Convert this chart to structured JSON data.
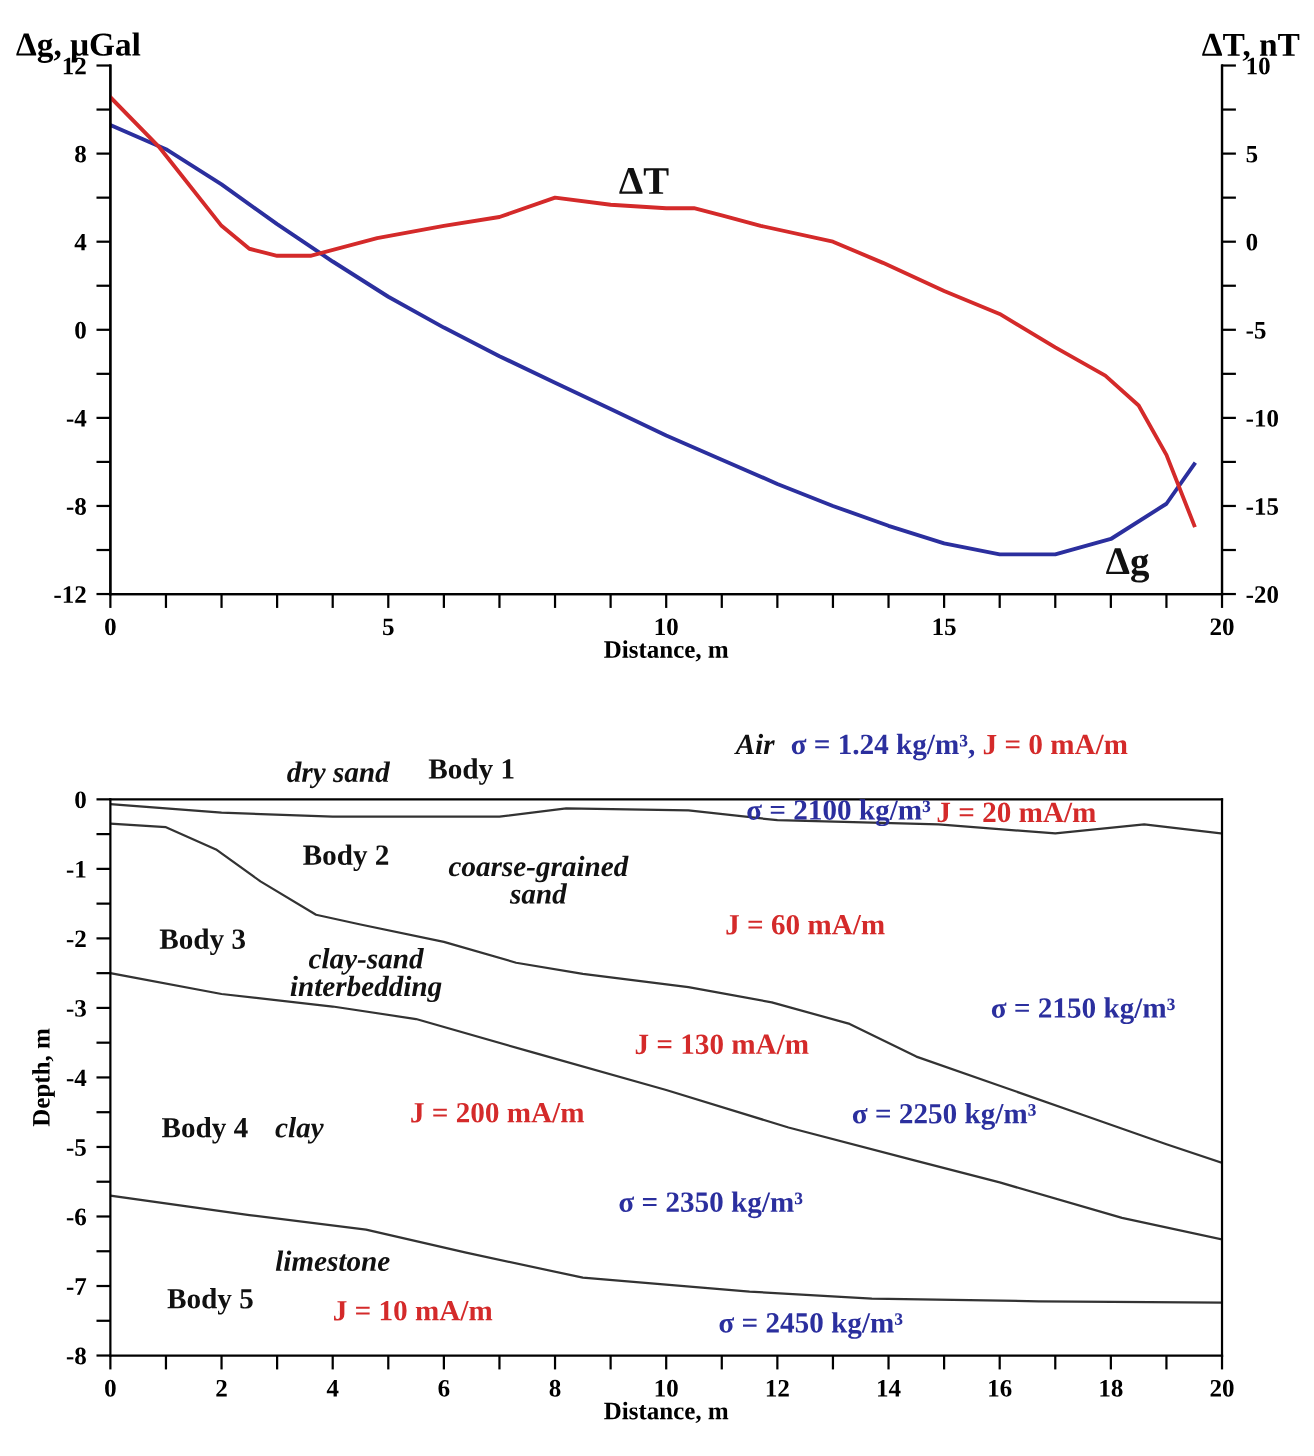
{
  "chart_data": [
    {
      "type": "line",
      "xlabel": "Distance, m",
      "ylabel": "Δg, μGal",
      "y2label": "ΔT, nT",
      "xlim": [
        0,
        20
      ],
      "xticks": [
        0,
        5,
        10,
        15,
        20,
        {
          "value": 1,
          "label": null
        },
        {
          "value": 2,
          "label": null
        },
        {
          "value": 3,
          "label": null
        },
        {
          "value": 4,
          "label": null
        },
        {
          "value": 6,
          "label": null
        },
        {
          "value": 7,
          "label": null
        },
        {
          "value": 8,
          "label": null
        },
        {
          "value": 9,
          "label": null
        },
        {
          "value": 11,
          "label": null
        },
        {
          "value": 12,
          "label": null
        },
        {
          "value": 13,
          "label": null
        },
        {
          "value": 14,
          "label": null
        },
        {
          "value": 16,
          "label": null
        },
        {
          "value": 17,
          "label": null
        },
        {
          "value": 18,
          "label": null
        },
        {
          "value": 19,
          "label": null
        }
      ],
      "ylim": [
        -12,
        12
      ],
      "yticks": [
        -12,
        -8,
        -4,
        0,
        4,
        8,
        12,
        {
          "value": -10,
          "label": null
        },
        {
          "value": -6,
          "label": null
        },
        {
          "value": -2,
          "label": null
        },
        {
          "value": 2,
          "label": null
        },
        {
          "value": 6,
          "label": null
        },
        {
          "value": 10,
          "label": null
        }
      ],
      "y2lim": [
        -20,
        10
      ],
      "y2ticks": [
        -20,
        -15,
        -10,
        -5,
        0,
        5,
        10,
        {
          "value": -17.5,
          "label": null
        },
        {
          "value": -12.5,
          "label": null
        },
        {
          "value": -7.5,
          "label": null
        },
        {
          "value": -2.5,
          "label": null
        },
        {
          "value": 2.5,
          "label": null
        },
        {
          "value": 7.5,
          "label": null
        }
      ],
      "grid": false,
      "legend": false,
      "series": [
        {
          "name": "Δg",
          "color": "#2b2f9e",
          "x": [
            0,
            1,
            2,
            3,
            4,
            5,
            6,
            7,
            8,
            9,
            10,
            11,
            12,
            13,
            14,
            15,
            16,
            17,
            18,
            19,
            19.5
          ],
          "values": [
            9.3,
            8.2,
            6.6,
            4.8,
            3.1,
            1.5,
            0.1,
            -1.2,
            -2.4,
            -3.6,
            -4.8,
            -5.9,
            -7.0,
            -8.0,
            -8.9,
            -9.7,
            -10.2,
            -10.2,
            -9.5,
            -7.9,
            -6.1
          ]
        },
        {
          "name": "ΔT",
          "color": "#d42a2a",
          "axis": "y2",
          "x": [
            0,
            0.87,
            2,
            2.5,
            3,
            3.6,
            4.8,
            6,
            7,
            8,
            9,
            10,
            10.5,
            11,
            11.7,
            13,
            13.9,
            15,
            16,
            17,
            17.9,
            18.5,
            19,
            19.5
          ],
          "values": [
            8.2,
            5.4,
            0.9,
            -0.4,
            -0.8,
            -0.8,
            0.2,
            0.9,
            1.4,
            2.5,
            2.1,
            1.9,
            1.9,
            1.5,
            0.9,
            0,
            -1.2,
            -2.8,
            -4.1,
            -6.0,
            -7.6,
            -9.3,
            -12.1,
            -16.1
          ]
        }
      ]
    },
    {
      "type": "line",
      "xlabel": "Distance, m",
      "ylabel": "Depth, m",
      "xlim": [
        0,
        20
      ],
      "xticks": [
        0,
        2,
        4,
        6,
        8,
        10,
        12,
        14,
        16,
        18,
        20,
        {
          "value": 1,
          "label": null
        },
        {
          "value": 3,
          "label": null
        },
        {
          "value": 5,
          "label": null
        },
        {
          "value": 7,
          "label": null
        },
        {
          "value": 9,
          "label": null
        },
        {
          "value": 11,
          "label": null
        },
        {
          "value": 13,
          "label": null
        },
        {
          "value": 15,
          "label": null
        },
        {
          "value": 17,
          "label": null
        },
        {
          "value": 19,
          "label": null
        }
      ],
      "ylim": [
        -8,
        0
      ],
      "yticks": [
        -8,
        -7,
        -6,
        -5,
        -4,
        -3,
        -2,
        -1,
        0,
        {
          "value": -7.5,
          "label": null
        },
        {
          "value": -6.5,
          "label": null
        },
        {
          "value": -5.5,
          "label": null
        },
        {
          "value": -4.5,
          "label": null
        },
        {
          "value": -3.5,
          "label": null
        },
        {
          "value": -2.5,
          "label": null
        },
        {
          "value": -1.5,
          "label": null
        },
        {
          "value": -0.5,
          "label": null
        }
      ],
      "grid": false,
      "legend": false,
      "series": [
        {
          "color": "#333333",
          "x": [
            0,
            2,
            4,
            7,
            8.2,
            10.4,
            12,
            14.9,
            17,
            18.6,
            20
          ],
          "values": [
            -0.07,
            -0.19,
            -0.25,
            -0.25,
            -0.13,
            -0.16,
            -0.3,
            -0.36,
            -0.49,
            -0.36,
            -0.49
          ]
        },
        {
          "color": "#333333",
          "x": [
            0,
            1,
            1.9,
            2.7,
            3.7,
            4.5,
            6,
            7.3,
            8.5,
            10.4,
            11.9,
            13.3,
            14.5,
            16,
            17.5,
            19,
            20
          ],
          "values": [
            -0.35,
            -0.4,
            -0.72,
            -1.18,
            -1.66,
            -1.8,
            -2.05,
            -2.35,
            -2.51,
            -2.7,
            -2.92,
            -3.23,
            -3.7,
            -4.12,
            -4.54,
            -4.96,
            -5.23
          ]
        },
        {
          "color": "#333333",
          "x": [
            0,
            2,
            4,
            5.5,
            7.6,
            10,
            12.2,
            14.5,
            16,
            18.2,
            20
          ],
          "values": [
            -2.5,
            -2.8,
            -2.98,
            -3.16,
            -3.64,
            -4.18,
            -4.72,
            -5.2,
            -5.51,
            -6.02,
            -6.33
          ]
        },
        {
          "color": "#333333",
          "x": [
            0,
            2.5,
            4.6,
            6.4,
            8.5,
            11.5,
            13.7,
            16.7,
            20
          ],
          "values": [
            -5.7,
            -5.98,
            -6.19,
            -6.52,
            -6.88,
            -7.08,
            -7.18,
            -7.22,
            -7.24
          ]
        }
      ],
      "annotations": [
        "Air",
        "σ = 1.24 kg/m³,",
        "J = 0 mA/m",
        "dry sand",
        "Body 1",
        "σ = 2100 kg/m³",
        "J = 20 mA/m",
        "Body 2",
        "coarse-grained\nsand",
        "J = 60 mA/m",
        "Body 3",
        "clay-sand\ninterbedding",
        "σ = 2150 kg/m³",
        "J = 130 mA/m",
        "Body 4",
        "clay",
        "J = 200 mA/m",
        "σ = 2250 kg/m³",
        "σ = 2350 kg/m³",
        "limestone",
        "Body 5",
        "J = 10 mA/m",
        "σ = 2450 kg/m³"
      ]
    }
  ]
}
